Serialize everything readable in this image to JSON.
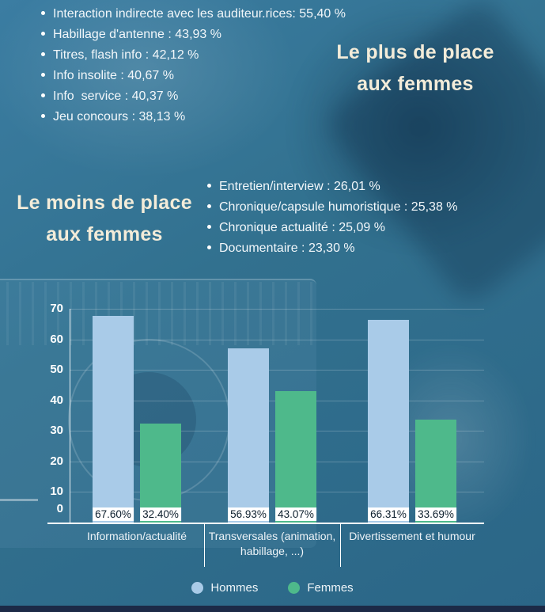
{
  "colors": {
    "background": "#306f93",
    "heading": "#f3ecd9",
    "text": "#f2f7fa",
    "hommes": "#a9cbe8",
    "femmes": "#4eb98b",
    "axis": "#ffffff",
    "bar_label_bg": "#ffffff",
    "bar_label_text": "#0d1f2d",
    "bottom_strip": "#1c2a47"
  },
  "headings": {
    "most": [
      "Le plus de place",
      "aux femmes"
    ],
    "least": [
      "Le moins de place",
      "aux femmes"
    ]
  },
  "lists": {
    "most_place": [
      "Interaction indirecte avec les auditeur.rices: 55,40 %",
      "Habillage d'antenne : 43,93 %",
      "Titres, flash info : 42,12 %",
      "Info insolite : 40,67 %",
      "Info  service : 40,37 %",
      "Jeu concours : 38,13 %"
    ],
    "least_place": [
      "Entretien/interview : 26,01 %",
      "Chronique/capsule humoristique : 25,38 %",
      "Chronique actualité : 25,09 %",
      "Documentaire : 23,30 %"
    ]
  },
  "chart_data": {
    "type": "bar",
    "categories": [
      "Information/actualité",
      "Transversales (animation, habillage, ...)",
      "Divertissement et humour"
    ],
    "series": [
      {
        "name": "Hommes",
        "color": "#a9cbe8",
        "values": [
          67.6,
          56.93,
          66.31
        ]
      },
      {
        "name": "Femmes",
        "color": "#4eb98b",
        "values": [
          32.4,
          43.07,
          33.69
        ]
      }
    ],
    "bar_labels": [
      [
        "67.60%",
        "32.40%"
      ],
      [
        "56.93%",
        "43.07%"
      ],
      [
        "66.31%",
        "33.69%"
      ]
    ],
    "ylim": [
      0,
      70
    ],
    "yticks": [
      0,
      10,
      20,
      30,
      40,
      50,
      60,
      70
    ],
    "grid": true,
    "legend": [
      "Hommes",
      "Femmes"
    ],
    "legend_position": "bottom"
  }
}
